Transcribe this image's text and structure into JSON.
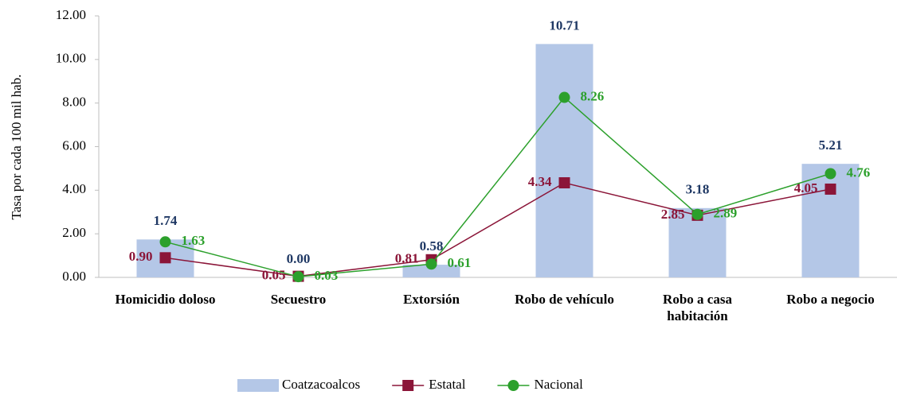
{
  "chart_data": {
    "type": "bar_line",
    "y_label": "Tasa por cada 100 mil hab.",
    "categories": [
      "Homicidio doloso",
      "Secuestro",
      "Extorsión",
      "Robo de vehículo",
      "Robo a casa habitación",
      "Robo a negocio"
    ],
    "series": [
      {
        "name": "Coatzacoalcos",
        "type": "bar",
        "color": "#b4c7e7",
        "label_color": "#1f3864",
        "values": [
          1.74,
          0,
          0.58,
          10.71,
          3.18,
          5.21
        ],
        "value_labels": [
          "1.74",
          "0.00",
          "0.58",
          "10.71",
          "3.18",
          "5.21"
        ]
      },
      {
        "name": "Estatal",
        "type": "line",
        "marker": "square",
        "color": "#8b1538",
        "values": [
          0.9,
          0.05,
          0.81,
          4.34,
          2.85,
          4.05
        ],
        "value_labels": [
          "0.90",
          "0.05",
          "0.81",
          "4.34",
          "2.85",
          "4.05"
        ]
      },
      {
        "name": "Nacional",
        "type": "line",
        "marker": "circle",
        "color": "#2ca02c",
        "values": [
          1.63,
          0.03,
          0.61,
          8.26,
          2.89,
          4.76
        ],
        "value_labels": [
          "1.63",
          "0.03",
          "0.61",
          "8.26",
          "2.89",
          "4.76"
        ]
      }
    ],
    "ylim": [
      0,
      12
    ],
    "yticks": [
      {
        "value": 0,
        "label": "0.00"
      },
      {
        "value": 2,
        "label": "2.00"
      },
      {
        "value": 4,
        "label": "4.00"
      },
      {
        "value": 6,
        "label": "6.00"
      },
      {
        "value": 8,
        "label": "8.00"
      },
      {
        "value": 10,
        "label": "10.00"
      },
      {
        "value": 12,
        "label": "12.00"
      }
    ],
    "grid": false,
    "legend": "bottom"
  }
}
